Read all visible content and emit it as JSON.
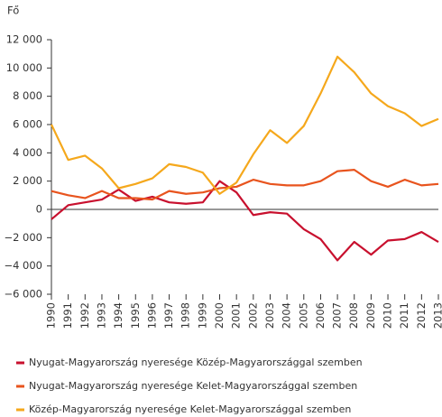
{
  "chart_data": {
    "type": "line",
    "y_label": "Fő",
    "categories": [
      "1990",
      "1991",
      "1992",
      "1993",
      "1994",
      "1995",
      "1996",
      "1997",
      "1998",
      "1999",
      "2000",
      "2001",
      "2002",
      "2003",
      "2004",
      "2005",
      "2006",
      "2007",
      "2008",
      "2009",
      "2010",
      "2011",
      "2012",
      "2013"
    ],
    "series": [
      {
        "name": "Nyugat-Magyarország nyeresége Közép-Magyarországgal szemben",
        "color": "#c8102e",
        "values": [
          -700,
          300,
          500,
          700,
          1400,
          600,
          900,
          500,
          400,
          500,
          2000,
          1200,
          -400,
          -200,
          -300,
          -1400,
          -2100,
          -3600,
          -2300,
          -3200,
          -2200,
          -2100,
          -1600,
          -2300
        ]
      },
      {
        "name": "Nyugat-Magyarország nyeresége Kelet-Magyarországgal  szemben",
        "color": "#e8541e",
        "values": [
          1300,
          1000,
          800,
          1300,
          800,
          800,
          700,
          1300,
          1100,
          1200,
          1500,
          1600,
          2100,
          1800,
          1700,
          1700,
          2000,
          2700,
          2800,
          2000,
          1600,
          2100,
          1700,
          1800
        ]
      },
      {
        "name": "Közép-Magyarország nyeresége Kelet-Magyarországgal szemben",
        "color": "#f5a81c",
        "values": [
          6000,
          3500,
          3800,
          2900,
          1500,
          1800,
          2200,
          3200,
          3000,
          2600,
          1100,
          1900,
          3900,
          5600,
          4700,
          5900,
          8200,
          10800,
          9700,
          8200,
          7300,
          6800,
          5900,
          6400
        ]
      }
    ],
    "ylim": [
      -6000,
      12000
    ],
    "yticks": [
      {
        "value": 12000,
        "label": "12 000"
      },
      {
        "value": 10000,
        "label": "10 000"
      },
      {
        "value": 8000,
        "label": "8 000"
      },
      {
        "value": 6000,
        "label": "6 000"
      },
      {
        "value": 4000,
        "label": "4 000"
      },
      {
        "value": 2000,
        "label": "2 000"
      },
      0,
      {
        "value": -2000,
        "label": "−2 000"
      },
      {
        "value": -4000,
        "label": "−4 000"
      },
      {
        "value": -6000,
        "label": "−6 000"
      }
    ]
  }
}
